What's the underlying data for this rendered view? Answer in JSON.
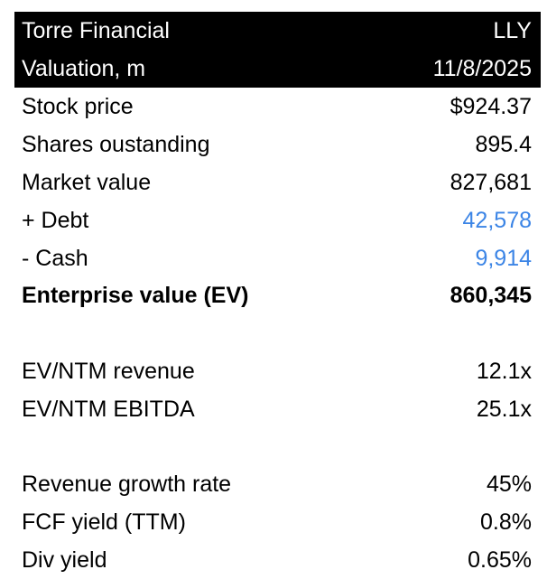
{
  "header": {
    "company": "Torre Financial",
    "ticker": "LLY",
    "subtitle": "Valuation, m",
    "date": "11/8/2025"
  },
  "rows": [
    {
      "label": "Stock price",
      "value": "$924.37"
    },
    {
      "label": "Shares oustanding",
      "value": "895.4"
    },
    {
      "label": "Market value",
      "value": "827,681"
    },
    {
      "label": "+ Debt",
      "value": "42,578"
    },
    {
      "label": "- Cash",
      "value": "9,914"
    },
    {
      "label": "Enterprise value (EV)",
      "value": "860,345"
    },
    {
      "label": "EV/NTM revenue",
      "value": "12.1x"
    },
    {
      "label": "EV/NTM EBITDA",
      "value": "25.1x"
    },
    {
      "label": "Revenue growth rate",
      "value": "45%"
    },
    {
      "label": "FCF yield (TTM)",
      "value": "0.8%"
    },
    {
      "label": "Div yield",
      "value": "0.65%"
    }
  ],
  "colors": {
    "header_bg": "#000000",
    "header_text": "#ffffff",
    "input_blue": "#3c85e6"
  }
}
